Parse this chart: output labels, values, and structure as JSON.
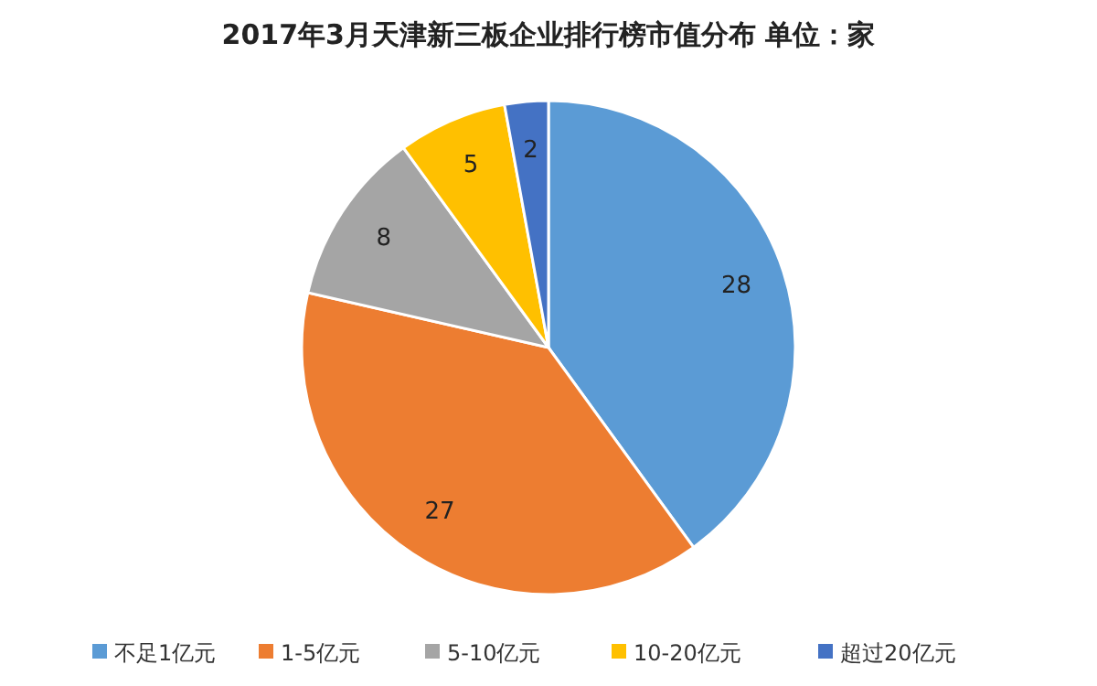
{
  "chart_data": {
    "type": "pie",
    "title": "2017年3月天津新三板企业排行榜市值分布 单位：家",
    "categories": [
      "不足1亿元",
      "1-5亿元",
      "5-10亿元",
      "10-20亿元",
      "超过20亿元"
    ],
    "values": [
      28,
      27,
      8,
      5,
      2
    ],
    "colors": [
      "#5b9bd5",
      "#ed7d31",
      "#a5a5a5",
      "#ffc000",
      "#4472c4"
    ],
    "data_labels": true,
    "legend": "bottom"
  }
}
